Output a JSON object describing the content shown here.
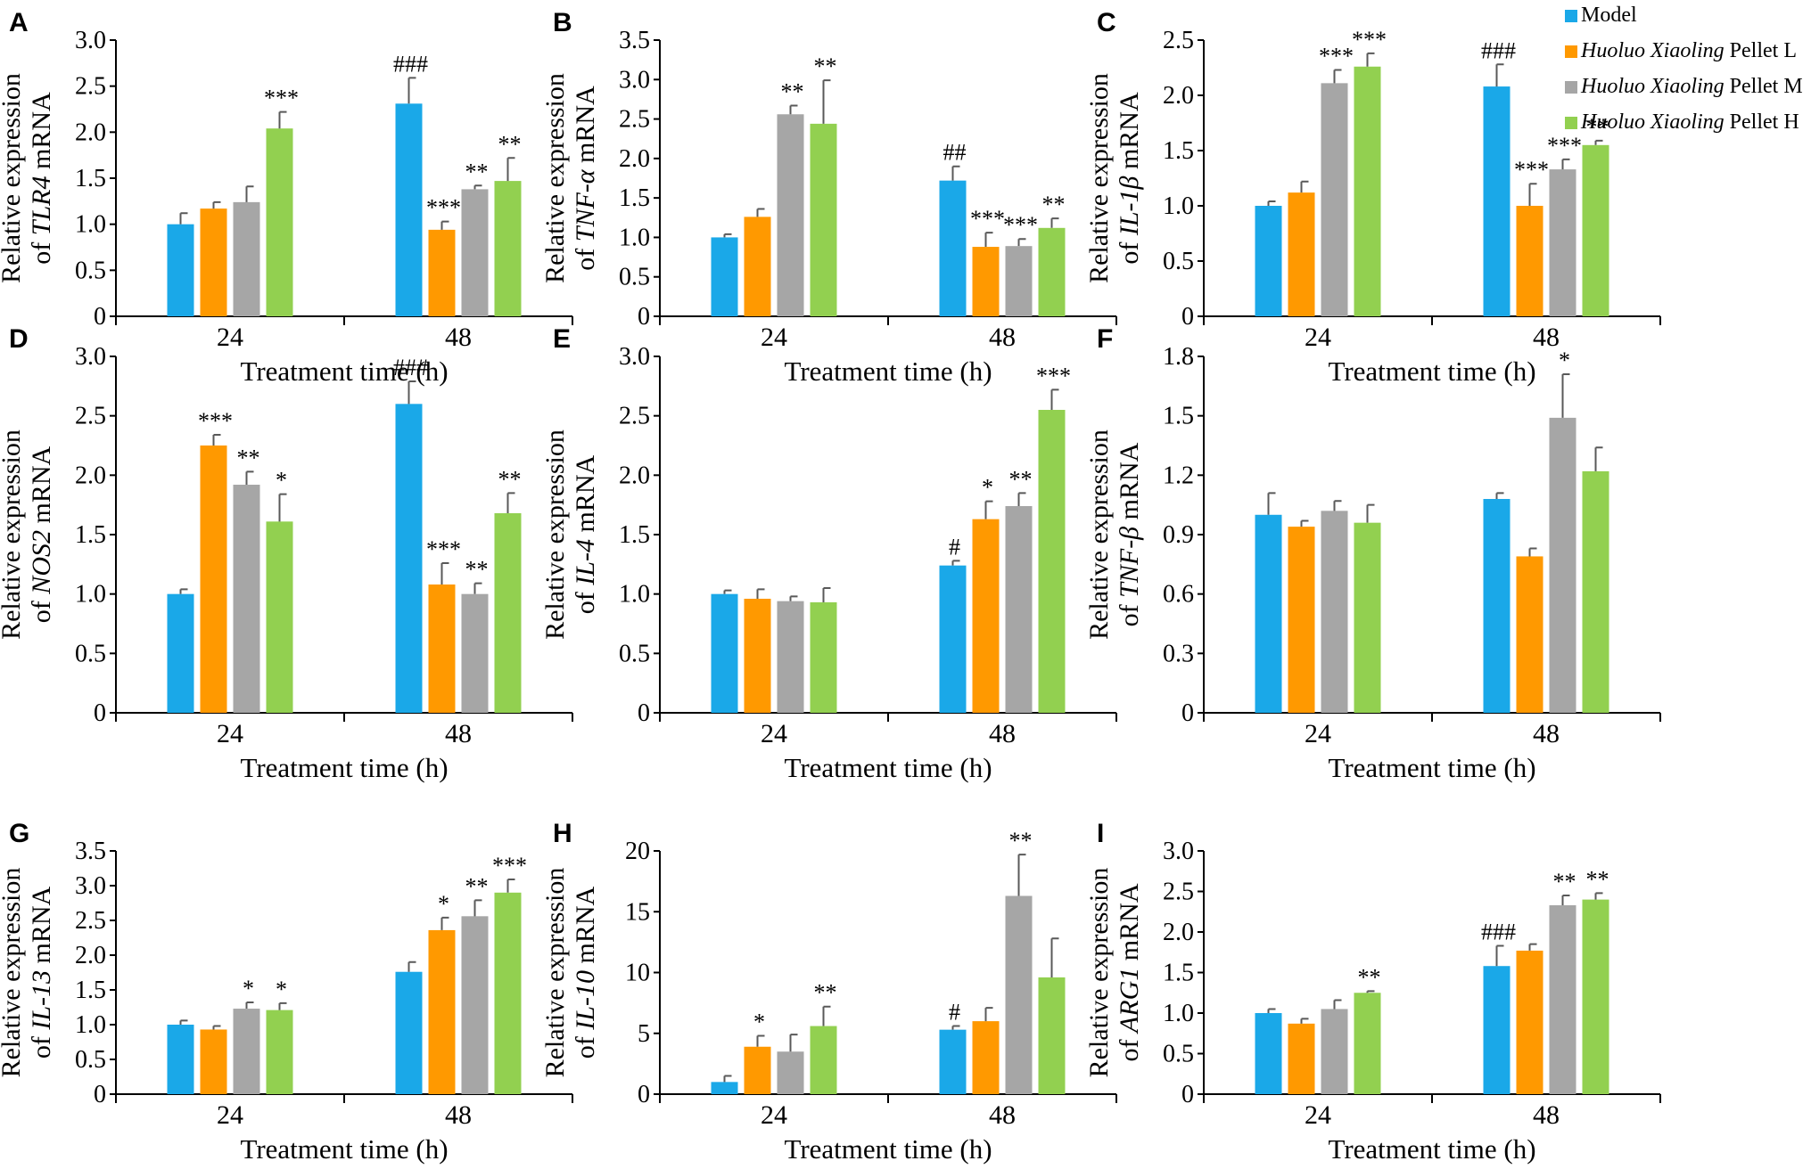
{
  "chart_data": {
    "type": "bar",
    "legend": {
      "placement": "top-right",
      "entries": [
        {
          "text": "Model",
          "italic": "",
          "rest": "Model",
          "color": "#1aa8e8"
        },
        {
          "text": "Huoluo Xiaoling Pellet L",
          "italic": "Huoluo Xiaoling",
          "rest": " Pellet L",
          "color": "#ff9900"
        },
        {
          "text": "Huoluo Xiaoling Pellet M",
          "italic": "Huoluo Xiaoling",
          "rest": " Pellet M",
          "color": "#a6a6a6"
        },
        {
          "text": "Huoluo Xiaoling Pellet H",
          "italic": "Huoluo Xiaoling",
          "rest": " Pellet H",
          "color": "#92d050"
        }
      ]
    },
    "panels": [
      {
        "letter": "A",
        "ylabel_line1": "Relative expression",
        "ylabel_pre": "of ",
        "ylabel_gene": "TLR4",
        "ylabel_post": " mRNA",
        "xlabel": "Treatment time (h)",
        "categories": [
          "24",
          "48"
        ],
        "ylim": [
          0,
          3.0
        ],
        "yticks": [
          "0",
          "0.5",
          "1.0",
          "1.5",
          "2.0",
          "2.5",
          "3.0"
        ],
        "values": [
          [
            1.0,
            1.17,
            1.24,
            2.04
          ],
          [
            2.31,
            0.94,
            1.38,
            1.47
          ]
        ],
        "errors": [
          [
            0.12,
            0.07,
            0.17,
            0.18
          ],
          [
            0.28,
            0.09,
            0.04,
            0.25
          ]
        ],
        "sig": [
          [
            "",
            "",
            "",
            "***"
          ],
          [
            "###",
            "***",
            "**",
            "**"
          ]
        ]
      },
      {
        "letter": "B",
        "ylabel_line1": "Relative expression",
        "ylabel_pre": "of ",
        "ylabel_gene": "TNF-α",
        "ylabel_post": " mRNA",
        "xlabel": "Treatment time (h)",
        "categories": [
          "24",
          "48"
        ],
        "ylim": [
          0,
          3.5
        ],
        "yticks": [
          "0",
          "0.5",
          "1.0",
          "1.5",
          "2.0",
          "2.5",
          "3.0",
          "3.5"
        ],
        "values": [
          [
            1.0,
            1.26,
            2.56,
            2.44
          ],
          [
            1.72,
            0.88,
            0.89,
            1.12
          ]
        ],
        "errors": [
          [
            0.04,
            0.1,
            0.11,
            0.55
          ],
          [
            0.18,
            0.18,
            0.09,
            0.12
          ]
        ],
        "sig": [
          [
            "",
            "",
            "**",
            "**"
          ],
          [
            "##",
            "***",
            "***",
            "**"
          ]
        ]
      },
      {
        "letter": "C",
        "ylabel_line1": "Relative expression",
        "ylabel_pre": "of ",
        "ylabel_gene": "IL-1β",
        "ylabel_post": " mRNA",
        "xlabel": "Treatment time (h)",
        "categories": [
          "24",
          "48"
        ],
        "ylim": [
          0,
          2.5
        ],
        "yticks": [
          "0",
          "0.5",
          "1.0",
          "1.5",
          "2.0",
          "2.5"
        ],
        "values": [
          [
            1.0,
            1.12,
            2.11,
            2.26
          ],
          [
            2.08,
            1.0,
            1.33,
            1.55
          ]
        ],
        "errors": [
          [
            0.04,
            0.1,
            0.12,
            0.12
          ],
          [
            0.2,
            0.2,
            0.09,
            0.04
          ]
        ],
        "sig": [
          [
            "",
            "",
            "***",
            "***"
          ],
          [
            "###",
            "***",
            "***",
            "**"
          ]
        ]
      },
      {
        "letter": "D",
        "ylabel_line1": "Relative expression",
        "ylabel_pre": "of ",
        "ylabel_gene": "NOS2",
        "ylabel_post": " mRNA",
        "xlabel": "Treatment time (h)",
        "categories": [
          "24",
          "48"
        ],
        "ylim": [
          0,
          3.0
        ],
        "yticks": [
          "0",
          "0.5",
          "1.0",
          "1.5",
          "2.0",
          "2.5",
          "3.0"
        ],
        "values": [
          [
            1.0,
            2.25,
            1.92,
            1.61
          ],
          [
            2.6,
            1.08,
            1.0,
            1.68
          ]
        ],
        "errors": [
          [
            0.04,
            0.09,
            0.11,
            0.23
          ],
          [
            0.19,
            0.18,
            0.09,
            0.17
          ]
        ],
        "sig": [
          [
            "",
            "***",
            "**",
            "*"
          ],
          [
            "###",
            "***",
            "**",
            "**"
          ]
        ]
      },
      {
        "letter": "E",
        "ylabel_line1": "Relative expression",
        "ylabel_pre": "of ",
        "ylabel_gene": "IL-4",
        "ylabel_post": " mRNA",
        "xlabel": "Treatment time (h)",
        "categories": [
          "24",
          "48"
        ],
        "ylim": [
          0,
          3.0
        ],
        "yticks": [
          "0",
          "0.5",
          "1.0",
          "1.5",
          "2.0",
          "2.5",
          "3.0"
        ],
        "values": [
          [
            1.0,
            0.96,
            0.94,
            0.93
          ],
          [
            1.24,
            1.63,
            1.74,
            2.55
          ]
        ],
        "errors": [
          [
            0.03,
            0.08,
            0.04,
            0.12
          ],
          [
            0.04,
            0.15,
            0.11,
            0.17
          ]
        ],
        "sig": [
          [
            "",
            "",
            "",
            ""
          ],
          [
            "#",
            "*",
            "**",
            "***"
          ]
        ]
      },
      {
        "letter": "F",
        "ylabel_line1": "Relative expression",
        "ylabel_pre": "of ",
        "ylabel_gene": "TNF-β",
        "ylabel_post": " mRNA",
        "xlabel": "Treatment time (h)",
        "categories": [
          "24",
          "48"
        ],
        "ylim": [
          0,
          1.8
        ],
        "yticks": [
          "0",
          "0.3",
          "0.6",
          "0.9",
          "1.2",
          "1.5",
          "1.8"
        ],
        "values": [
          [
            1.0,
            0.94,
            1.02,
            0.96
          ],
          [
            1.08,
            0.79,
            1.49,
            1.22
          ]
        ],
        "errors": [
          [
            0.11,
            0.03,
            0.05,
            0.09
          ],
          [
            0.03,
            0.04,
            0.22,
            0.12
          ]
        ],
        "sig": [
          [
            "",
            "",
            "",
            ""
          ],
          [
            "",
            "",
            "*",
            ""
          ]
        ]
      },
      {
        "letter": "G",
        "ylabel_line1": "Relative expression",
        "ylabel_pre": "of ",
        "ylabel_gene": "IL-13",
        "ylabel_post": " mRNA",
        "xlabel": "Treatment time (h)",
        "categories": [
          "24",
          "48"
        ],
        "ylim": [
          0,
          3.5
        ],
        "yticks": [
          "0",
          "0.5",
          "1.0",
          "1.5",
          "2.0",
          "2.5",
          "3.0",
          "3.5"
        ],
        "values": [
          [
            1.0,
            0.93,
            1.23,
            1.21
          ],
          [
            1.76,
            2.36,
            2.56,
            2.9
          ]
        ],
        "errors": [
          [
            0.06,
            0.05,
            0.09,
            0.1
          ],
          [
            0.14,
            0.18,
            0.23,
            0.19
          ]
        ],
        "sig": [
          [
            "",
            "",
            "*",
            "*"
          ],
          [
            "",
            "*",
            "**",
            "***"
          ]
        ]
      },
      {
        "letter": "H",
        "ylabel_line1": "Relative expression",
        "ylabel_pre": "of ",
        "ylabel_gene": "IL-10",
        "ylabel_post": " mRNA",
        "xlabel": "Treatment time (h)",
        "categories": [
          "24",
          "48"
        ],
        "ylim": [
          0,
          20
        ],
        "yticks": [
          "0",
          "5",
          "10",
          "15",
          "20"
        ],
        "values": [
          [
            1.0,
            3.9,
            3.5,
            5.6
          ],
          [
            5.3,
            6.0,
            16.3,
            9.6
          ]
        ],
        "errors": [
          [
            0.5,
            0.9,
            1.4,
            1.6
          ],
          [
            0.3,
            1.1,
            3.4,
            3.2
          ]
        ],
        "sig": [
          [
            "",
            "*",
            "",
            "**"
          ],
          [
            "#",
            "",
            "**",
            ""
          ]
        ]
      },
      {
        "letter": "I",
        "ylabel_line1": "Relative expression",
        "ylabel_pre": "of ",
        "ylabel_gene": "ARG1",
        "ylabel_post": " mRNA",
        "xlabel": "Treatment time (h)",
        "categories": [
          "24",
          "48"
        ],
        "ylim": [
          0,
          3.0
        ],
        "yticks": [
          "0",
          "0.5",
          "1.0",
          "1.5",
          "2.0",
          "2.5",
          "3.0"
        ],
        "values": [
          [
            1.0,
            0.87,
            1.05,
            1.25
          ],
          [
            1.58,
            1.77,
            2.33,
            2.4
          ]
        ],
        "errors": [
          [
            0.05,
            0.06,
            0.11,
            0.02
          ],
          [
            0.25,
            0.08,
            0.12,
            0.08
          ]
        ],
        "sig": [
          [
            "",
            "",
            "",
            "**"
          ],
          [
            "###",
            "",
            "**",
            "**"
          ]
        ]
      }
    ]
  }
}
